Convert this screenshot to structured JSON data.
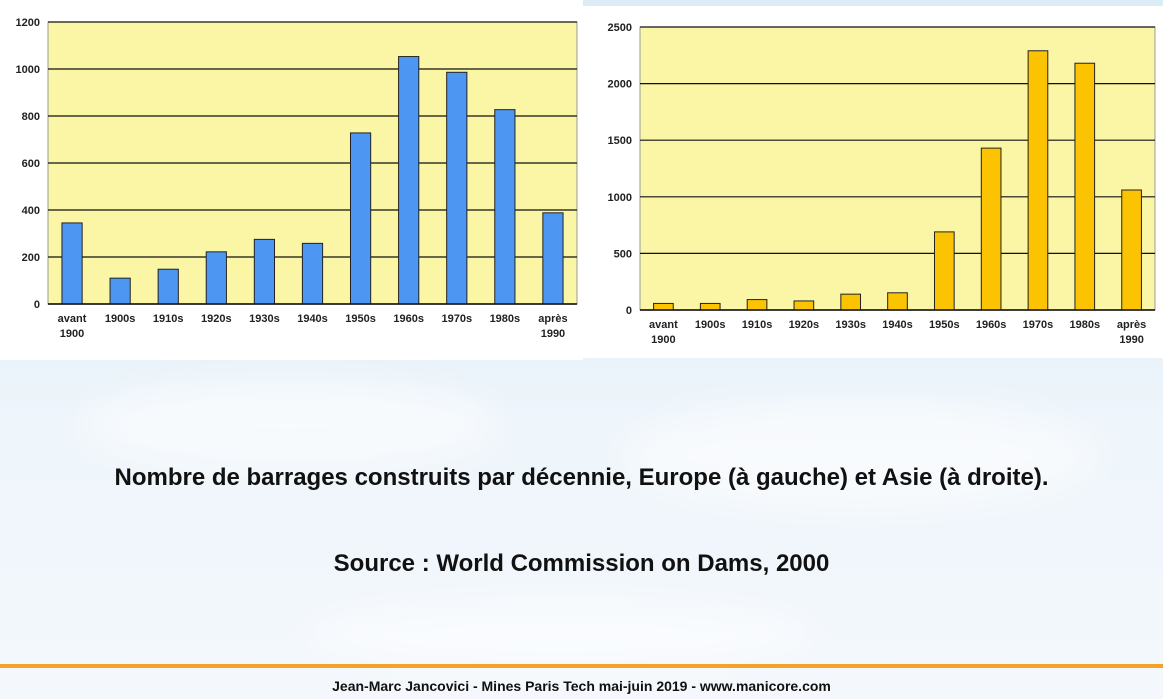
{
  "chart_data": [
    {
      "type": "bar",
      "categories": [
        "avant\n1900",
        "1900s",
        "1910s",
        "1920s",
        "1930s",
        "1940s",
        "1950s",
        "1960s",
        "1970s",
        "1980s",
        "après\n1990"
      ],
      "values": [
        345,
        110,
        148,
        222,
        275,
        258,
        728,
        1053,
        986,
        827,
        388
      ],
      "ylim": [
        0,
        1200
      ],
      "yticks": [
        0,
        200,
        400,
        600,
        800,
        1000,
        1200
      ],
      "grid": true,
      "bar_color": "#4d97f3",
      "plot_bg": "#fbf6a5"
    },
    {
      "type": "bar",
      "categories": [
        "avant\n1900",
        "1900s",
        "1910s",
        "1920s",
        "1930s",
        "1940s",
        "1950s",
        "1960s",
        "1970s",
        "1980s",
        "après\n1990"
      ],
      "values": [
        58,
        58,
        92,
        80,
        140,
        152,
        690,
        1430,
        2290,
        2180,
        1060
      ],
      "ylim": [
        0,
        2500
      ],
      "yticks": [
        0,
        500,
        1000,
        1500,
        2000,
        2500
      ],
      "grid": true,
      "bar_color": "#fcc303",
      "plot_bg": "#fbf6a5"
    }
  ],
  "caption": {
    "main": "Nombre de barrages construits par décennie, Europe (à gauche) et Asie (à droite).",
    "source": "Source : World Commission on Dams, 2000"
  },
  "footer": {
    "text": "Jean-Marc Jancovici - Mines Paris Tech mai-juin 2019 - www.manicore.com",
    "accent_color": "#f5a12a"
  }
}
